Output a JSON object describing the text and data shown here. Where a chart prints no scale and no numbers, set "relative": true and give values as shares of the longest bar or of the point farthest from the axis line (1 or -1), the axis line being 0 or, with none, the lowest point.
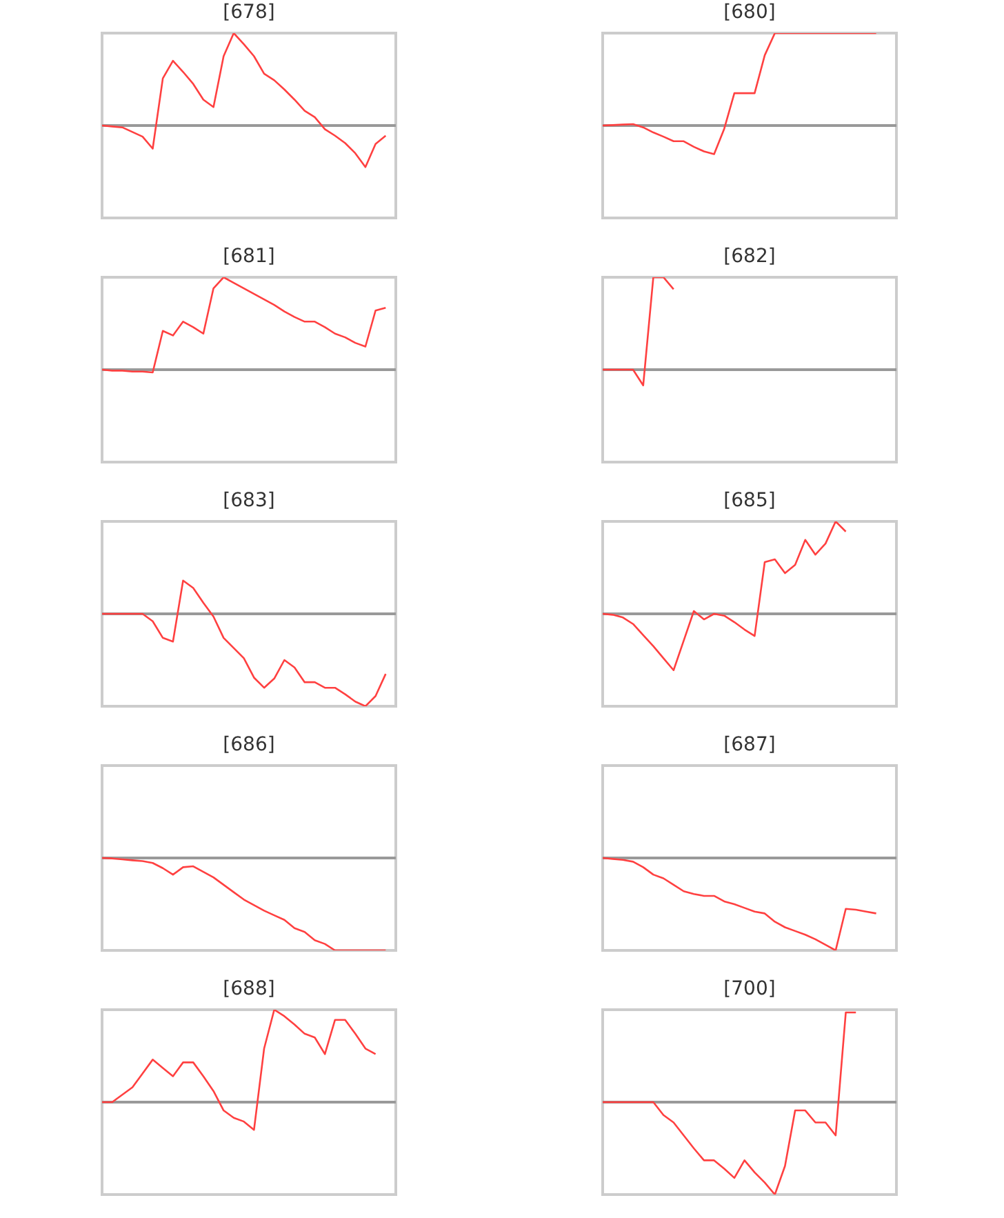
{
  "chart_data": [
    {
      "type": "line",
      "title": "[678]",
      "relative": true,
      "color": "#ff4040",
      "categories": [
        null,
        null,
        null,
        null,
        null,
        null,
        null,
        null,
        null,
        null,
        null,
        null,
        null,
        null,
        null,
        null,
        null,
        null,
        null,
        null,
        null,
        null,
        null,
        null,
        null,
        null,
        null,
        null,
        null,
        null
      ],
      "values": [
        0,
        -0.01,
        -0.02,
        -0.07,
        -0.12,
        -0.25,
        0.51,
        0.7,
        0.58,
        0.45,
        0.28,
        0.2,
        0.75,
        1,
        0.88,
        0.75,
        0.56,
        0.49,
        0.39,
        0.28,
        0.16,
        0.09,
        -0.04,
        -0.11,
        -0.19,
        -0.3,
        -0.45,
        -0.2,
        -0.11,
        null
      ]
    },
    {
      "type": "line",
      "title": "[680]",
      "relative": true,
      "color": "#ff4040",
      "categories": [
        null,
        null,
        null,
        null,
        null,
        null,
        null,
        null,
        null,
        null,
        null,
        null,
        null,
        null,
        null,
        null,
        null,
        null,
        null,
        null,
        null,
        null,
        null,
        null,
        null,
        null,
        null,
        null,
        null,
        null
      ],
      "values": [
        0,
        0.005,
        0.01,
        0.015,
        -0.02,
        -0.075,
        -0.12,
        -0.17,
        -0.17,
        -0.23,
        -0.28,
        -0.31,
        -0.035,
        0.35,
        0.35,
        0.35,
        0.76,
        1,
        1,
        1,
        1,
        1,
        1,
        1,
        1,
        1,
        1,
        1,
        null,
        null
      ]
    },
    {
      "type": "line",
      "title": "[681]",
      "relative": true,
      "color": "#ff4040",
      "categories": [
        null,
        null,
        null,
        null,
        null,
        null,
        null,
        null,
        null,
        null,
        null,
        null,
        null,
        null,
        null,
        null,
        null,
        null,
        null,
        null,
        null,
        null,
        null,
        null,
        null,
        null,
        null,
        null,
        null,
        null
      ],
      "values": [
        0,
        -0.01,
        -0.01,
        -0.02,
        -0.02,
        -0.03,
        0.42,
        0.37,
        0.52,
        0.46,
        0.39,
        0.88,
        1,
        0.94,
        0.88,
        0.82,
        0.76,
        0.7,
        0.63,
        0.57,
        0.52,
        0.52,
        0.46,
        0.39,
        0.35,
        0.29,
        0.25,
        0.64,
        0.67,
        null
      ]
    },
    {
      "type": "line",
      "title": "[682]",
      "relative": true,
      "color": "#ff4040",
      "categories": [
        null,
        null,
        null,
        null,
        null,
        null,
        null,
        null,
        null,
        null,
        null,
        null,
        null,
        null,
        null,
        null,
        null,
        null,
        null,
        null,
        null,
        null,
        null,
        null,
        null,
        null,
        null,
        null,
        null,
        null
      ],
      "values": [
        0,
        0,
        0,
        0,
        -0.17,
        1,
        1,
        0.87,
        null,
        null,
        null,
        null,
        null,
        null,
        null,
        null,
        null,
        null,
        null,
        null,
        null,
        null,
        null,
        null,
        null,
        null,
        null,
        null,
        null,
        null
      ]
    },
    {
      "type": "line",
      "title": "[683]",
      "relative": true,
      "color": "#ff4040",
      "categories": [
        null,
        null,
        null,
        null,
        null,
        null,
        null,
        null,
        null,
        null,
        null,
        null,
        null,
        null,
        null,
        null,
        null,
        null,
        null,
        null,
        null,
        null,
        null,
        null,
        null,
        null,
        null,
        null,
        null,
        null
      ],
      "values": [
        0,
        0,
        0,
        0,
        0,
        -0.08,
        -0.26,
        -0.3,
        0.36,
        0.28,
        0.12,
        -0.03,
        -0.26,
        -0.37,
        -0.48,
        -0.69,
        -0.8,
        -0.7,
        -0.5,
        -0.58,
        -0.74,
        -0.74,
        -0.8,
        -0.8,
        -0.87,
        -0.95,
        -1,
        -0.89,
        -0.65,
        null
      ]
    },
    {
      "type": "line",
      "title": "[685]",
      "relative": true,
      "color": "#ff4040",
      "categories": [
        null,
        null,
        null,
        null,
        null,
        null,
        null,
        null,
        null,
        null,
        null,
        null,
        null,
        null,
        null,
        null,
        null,
        null,
        null,
        null,
        null,
        null,
        null,
        null,
        null,
        null,
        null,
        null,
        null,
        null
      ],
      "values": [
        0,
        -0.01,
        -0.04,
        -0.11,
        -0.23,
        -0.35,
        -0.48,
        -0.61,
        -0.29,
        0.03,
        -0.06,
        0,
        -0.02,
        -0.09,
        -0.17,
        -0.24,
        0.56,
        0.59,
        0.44,
        0.53,
        0.8,
        0.64,
        0.76,
        1,
        0.89,
        null,
        null,
        null,
        null,
        null
      ]
    },
    {
      "type": "line",
      "title": "[686]",
      "relative": true,
      "color": "#ff4040",
      "categories": [
        null,
        null,
        null,
        null,
        null,
        null,
        null,
        null,
        null,
        null,
        null,
        null,
        null,
        null,
        null,
        null,
        null,
        null,
        null,
        null,
        null,
        null,
        null,
        null,
        null,
        null,
        null,
        null,
        null,
        null
      ],
      "values": [
        0,
        -0.005,
        -0.015,
        -0.025,
        -0.034,
        -0.054,
        -0.11,
        -0.18,
        -0.1,
        -0.09,
        -0.15,
        -0.21,
        -0.29,
        -0.37,
        -0.45,
        -0.51,
        -0.57,
        -0.62,
        -0.67,
        -0.76,
        -0.8,
        -0.89,
        -0.93,
        -1,
        -1,
        -1,
        -1,
        -1,
        -1,
        null
      ]
    },
    {
      "type": "line",
      "title": "[687]",
      "relative": true,
      "color": "#ff4040",
      "categories": [
        null,
        null,
        null,
        null,
        null,
        null,
        null,
        null,
        null,
        null,
        null,
        null,
        null,
        null,
        null,
        null,
        null,
        null,
        null,
        null,
        null,
        null,
        null,
        null,
        null,
        null,
        null,
        null,
        null,
        null
      ],
      "values": [
        0,
        -0.01,
        -0.02,
        -0.04,
        -0.1,
        -0.18,
        -0.22,
        -0.29,
        -0.36,
        -0.39,
        -0.41,
        -0.41,
        -0.47,
        -0.5,
        -0.54,
        -0.58,
        -0.6,
        -0.69,
        -0.75,
        -0.79,
        -0.83,
        -0.88,
        -0.94,
        -1,
        -0.55,
        -0.56,
        -0.58,
        -0.6,
        null,
        null
      ]
    },
    {
      "type": "line",
      "title": "[688]",
      "relative": true,
      "color": "#ff4040",
      "categories": [
        null,
        null,
        null,
        null,
        null,
        null,
        null,
        null,
        null,
        null,
        null,
        null,
        null,
        null,
        null,
        null,
        null,
        null,
        null,
        null,
        null,
        null,
        null,
        null,
        null,
        null,
        null,
        null,
        null,
        null
      ],
      "values": [
        0,
        0,
        0.08,
        0.16,
        0.31,
        0.46,
        0.37,
        0.28,
        0.43,
        0.43,
        0.28,
        0.12,
        -0.09,
        -0.17,
        -0.21,
        -0.3,
        0.58,
        1,
        0.93,
        0.84,
        0.74,
        0.7,
        0.52,
        0.89,
        0.89,
        0.74,
        0.58,
        0.52,
        null,
        null
      ]
    },
    {
      "type": "line",
      "title": "[700]",
      "relative": true,
      "color": "#ff4040",
      "categories": [
        null,
        null,
        null,
        null,
        null,
        null,
        null,
        null,
        null,
        null,
        null,
        null,
        null,
        null,
        null,
        null,
        null,
        null,
        null,
        null,
        null,
        null,
        null,
        null,
        null,
        null,
        null,
        null,
        null,
        null
      ],
      "values": [
        0,
        0,
        0,
        0,
        0,
        0,
        -0.14,
        -0.22,
        -0.36,
        -0.5,
        -0.63,
        -0.63,
        -0.72,
        -0.82,
        -0.63,
        -0.76,
        -0.87,
        -1,
        -0.69,
        -0.09,
        -0.09,
        -0.22,
        -0.22,
        -0.36,
        0.97,
        0.97,
        null,
        null,
        null,
        null
      ]
    }
  ]
}
